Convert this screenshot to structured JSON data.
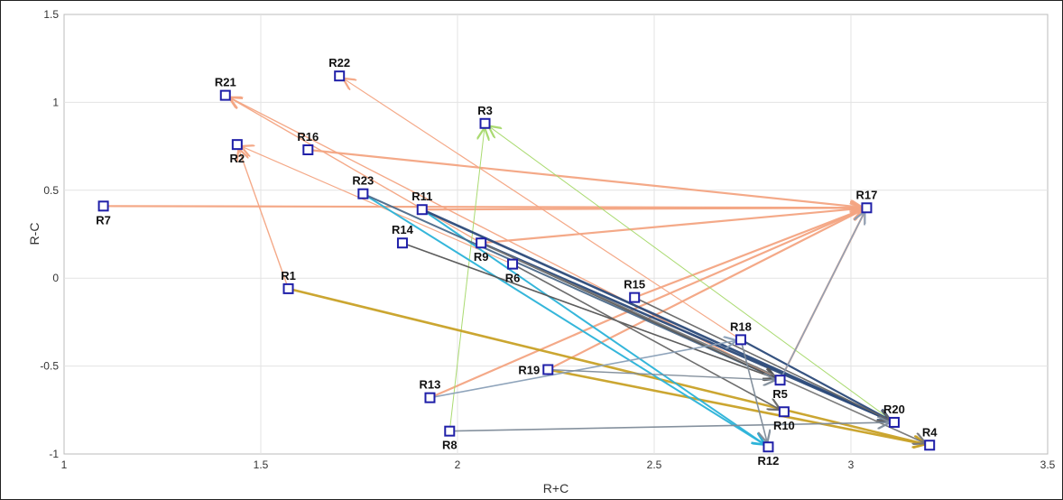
{
  "chart_data": {
    "type": "scatter",
    "title": "",
    "xlabel": "R+C",
    "ylabel": "R-C",
    "xlim": [
      1,
      3.5
    ],
    "ylim": [
      -1,
      1.5
    ],
    "grid": true,
    "xticks": [
      "1",
      "1.5",
      "2",
      "2.5",
      "3",
      "3.5"
    ],
    "yticks": [
      "1.5",
      "1",
      "0.5",
      "0",
      "-0.5",
      "-1"
    ],
    "points": [
      {
        "label": "R1",
        "x": 1.57,
        "y": -0.06,
        "label_pos": "above"
      },
      {
        "label": "R2",
        "x": 1.44,
        "y": 0.76,
        "label_pos": "below"
      },
      {
        "label": "R3",
        "x": 2.07,
        "y": 0.88,
        "label_pos": "above"
      },
      {
        "label": "R4",
        "x": 3.2,
        "y": -0.95,
        "label_pos": "above"
      },
      {
        "label": "R5",
        "x": 2.82,
        "y": -0.58,
        "label_pos": "below"
      },
      {
        "label": "R6",
        "x": 2.14,
        "y": 0.08,
        "label_pos": "below"
      },
      {
        "label": "R7",
        "x": 1.1,
        "y": 0.41,
        "label_pos": "below"
      },
      {
        "label": "R8",
        "x": 1.98,
        "y": -0.87,
        "label_pos": "below"
      },
      {
        "label": "R9",
        "x": 2.06,
        "y": 0.2,
        "label_pos": "below"
      },
      {
        "label": "R10",
        "x": 2.83,
        "y": -0.76,
        "label_pos": "below"
      },
      {
        "label": "R11",
        "x": 1.91,
        "y": 0.39,
        "label_pos": "above"
      },
      {
        "label": "R12",
        "x": 2.79,
        "y": -0.96,
        "label_pos": "below"
      },
      {
        "label": "R13",
        "x": 1.93,
        "y": -0.68,
        "label_pos": "above"
      },
      {
        "label": "R14",
        "x": 1.86,
        "y": 0.2,
        "label_pos": "above"
      },
      {
        "label": "R15",
        "x": 2.45,
        "y": -0.11,
        "label_pos": "above"
      },
      {
        "label": "R16",
        "x": 1.62,
        "y": 0.73,
        "label_pos": "above"
      },
      {
        "label": "R17",
        "x": 3.04,
        "y": 0.4,
        "label_pos": "above"
      },
      {
        "label": "R18",
        "x": 2.72,
        "y": -0.35,
        "label_pos": "above"
      },
      {
        "label": "R19",
        "x": 2.23,
        "y": -0.52,
        "label_pos": "left"
      },
      {
        "label": "R20",
        "x": 3.11,
        "y": -0.82,
        "label_pos": "above"
      },
      {
        "label": "R21",
        "x": 1.41,
        "y": 1.04,
        "label_pos": "above"
      },
      {
        "label": "R22",
        "x": 1.7,
        "y": 1.15,
        "label_pos": "above"
      },
      {
        "label": "R23",
        "x": 1.76,
        "y": 0.48,
        "label_pos": "above"
      }
    ],
    "edges": [
      {
        "from": "R7",
        "to": "R17",
        "color": "#f4a582",
        "width": 2.2
      },
      {
        "from": "R16",
        "to": "R17",
        "color": "#f4a582",
        "width": 2.2
      },
      {
        "from": "R11",
        "to": "R17",
        "color": "#f4a582",
        "width": 2.2
      },
      {
        "from": "R9",
        "to": "R17",
        "color": "#f4a582",
        "width": 2.2
      },
      {
        "from": "R15",
        "to": "R17",
        "color": "#f4a582",
        "width": 2.2
      },
      {
        "from": "R19",
        "to": "R17",
        "color": "#f4a582",
        "width": 2.2
      },
      {
        "from": "R13",
        "to": "R17",
        "color": "#f4a582",
        "width": 2.2
      },
      {
        "from": "R5",
        "to": "R17",
        "color": "#f4a582",
        "width": 2.2
      },
      {
        "from": "R1",
        "to": "R2",
        "color": "#f4a582",
        "width": 1.4
      },
      {
        "from": "R6",
        "to": "R2",
        "color": "#f4a582",
        "width": 1.2
      },
      {
        "from": "R9",
        "to": "R21",
        "color": "#f4a582",
        "width": 1.4
      },
      {
        "from": "R5",
        "to": "R21",
        "color": "#f4a582",
        "width": 1.4
      },
      {
        "from": "R18",
        "to": "R22",
        "color": "#f4a582",
        "width": 1.2
      },
      {
        "from": "R8",
        "to": "R3",
        "color": "#a6d96a",
        "width": 1.0
      },
      {
        "from": "R20",
        "to": "R3",
        "color": "#a6d96a",
        "width": 1.0
      },
      {
        "from": "R1",
        "to": "R4",
        "color": "#c9a227",
        "width": 2.6
      },
      {
        "from": "R19",
        "to": "R4",
        "color": "#c9a227",
        "width": 2.6
      },
      {
        "from": "R23",
        "to": "R12",
        "color": "#2bb3d9",
        "width": 2.0
      },
      {
        "from": "R11",
        "to": "R12",
        "color": "#2bb3d9",
        "width": 2.0
      },
      {
        "from": "R11",
        "to": "R20",
        "color": "#2c4a7a",
        "width": 2.6
      },
      {
        "from": "R9",
        "to": "R20",
        "color": "#2c4a7a",
        "width": 2.6
      },
      {
        "from": "R18",
        "to": "R20",
        "color": "#2c4a7a",
        "width": 2.2
      },
      {
        "from": "R23",
        "to": "R5",
        "color": "#4d6b8a",
        "width": 2.0
      },
      {
        "from": "R9",
        "to": "R5",
        "color": "#555555",
        "width": 1.8
      },
      {
        "from": "R14",
        "to": "R5",
        "color": "#555555",
        "width": 1.6
      },
      {
        "from": "R6",
        "to": "R10",
        "color": "#666666",
        "width": 1.6
      },
      {
        "from": "R15",
        "to": "R20",
        "color": "#666666",
        "width": 1.6
      },
      {
        "from": "R9",
        "to": "R4",
        "color": "#777777",
        "width": 1.6
      },
      {
        "from": "R13",
        "to": "R18",
        "color": "#8aa0b8",
        "width": 1.6
      },
      {
        "from": "R8",
        "to": "R20",
        "color": "#7f8c99",
        "width": 1.6
      },
      {
        "from": "R18",
        "to": "R12",
        "color": "#7f8c99",
        "width": 1.6
      },
      {
        "from": "R19",
        "to": "R5",
        "color": "#7f8c99",
        "width": 1.4
      },
      {
        "from": "R5",
        "to": "R17",
        "color": "#8aa0b8",
        "width": 1.6
      }
    ]
  }
}
